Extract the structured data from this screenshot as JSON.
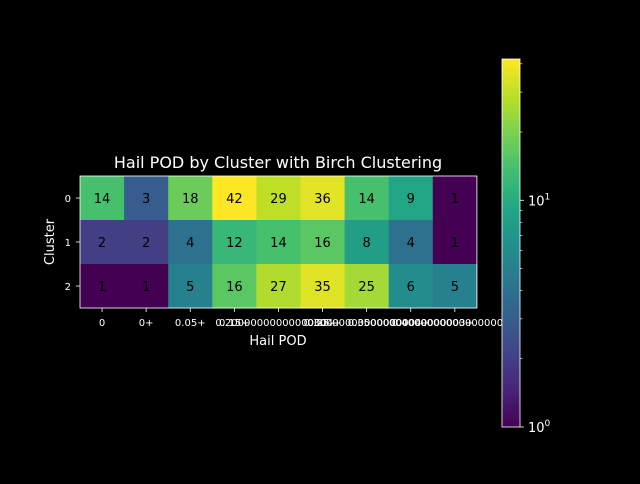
{
  "chart_data": {
    "type": "heatmap",
    "title": "Hail POD by Cluster with Birch Clustering",
    "xlabel": "Hail POD",
    "ylabel": "Cluster",
    "x_categories": [
      "0",
      "0+",
      "0.05+",
      "0.15+",
      "0.2+",
      "0.25+",
      "0.30000000000000004",
      "0.35000000000000003+",
      "0.4+"
    ],
    "x_tick_labels_display": [
      "0",
      "0+",
      "0.05+",
      "0.15+",
      "0.20000000000000004+",
      "0.25+",
      "0.30000000000000004+",
      "0.35000000000000003+",
      "0.40000000000000004+"
    ],
    "y_categories": [
      "0",
      "1",
      "2"
    ],
    "values": [
      [
        14,
        3,
        18,
        42,
        29,
        36,
        14,
        9,
        1
      ],
      [
        2,
        2,
        4,
        12,
        14,
        16,
        8,
        4,
        1
      ],
      [
        1,
        1,
        5,
        16,
        27,
        35,
        25,
        6,
        5
      ]
    ],
    "colormap": "viridis",
    "color_scale": "log",
    "vmin": 1,
    "vmax": 42,
    "colorbar_ticks": [
      {
        "base": "10",
        "exp": "0",
        "value": 1
      },
      {
        "base": "10",
        "exp": "1",
        "value": 10
      }
    ],
    "grid": false,
    "background": "#000000",
    "text_color": "#ffffff"
  }
}
